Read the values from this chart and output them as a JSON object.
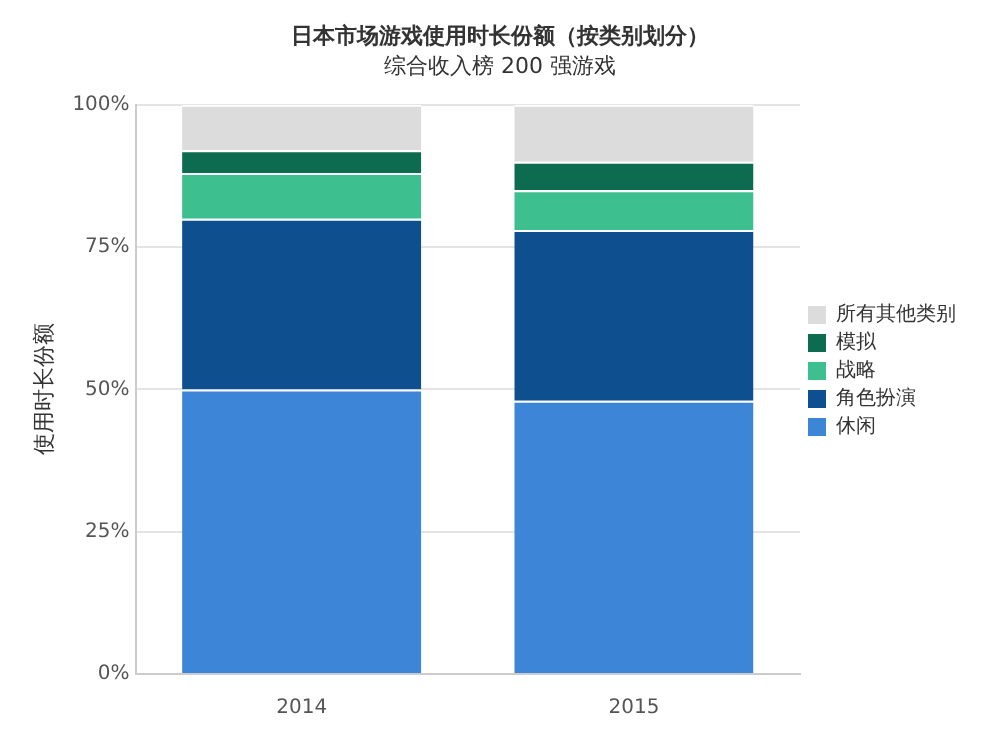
{
  "chart_data": {
    "type": "bar",
    "title": "日本市场游戏使用时长份额（按类别划分）",
    "subtitle": "综合收入榜 200 强游戏",
    "ylabel": "使用时长份额",
    "categories": [
      "2014",
      "2015"
    ],
    "stacked": true,
    "series": [
      {
        "name": "休闲",
        "color": "#3d85d6",
        "values": [
          50,
          48
        ]
      },
      {
        "name": "角色扮演",
        "color": "#0d4f8f",
        "values": [
          30,
          30
        ]
      },
      {
        "name": "战略",
        "color": "#3dbf8f",
        "values": [
          8,
          7
        ]
      },
      {
        "name": "模拟",
        "color": "#0d6b50",
        "values": [
          4,
          5
        ]
      },
      {
        "name": "所有其他类别",
        "color": "#dcdcdc",
        "values": [
          8,
          10
        ]
      }
    ],
    "ylim": [
      0,
      100
    ],
    "yticks": [
      {
        "value": 0,
        "label": "0%"
      },
      {
        "value": 25,
        "label": "25%"
      },
      {
        "value": 50,
        "label": "50%"
      },
      {
        "value": 75,
        "label": "75%"
      },
      {
        "value": 100,
        "label": "100%"
      }
    ],
    "grid": "y",
    "legend": "right"
  }
}
